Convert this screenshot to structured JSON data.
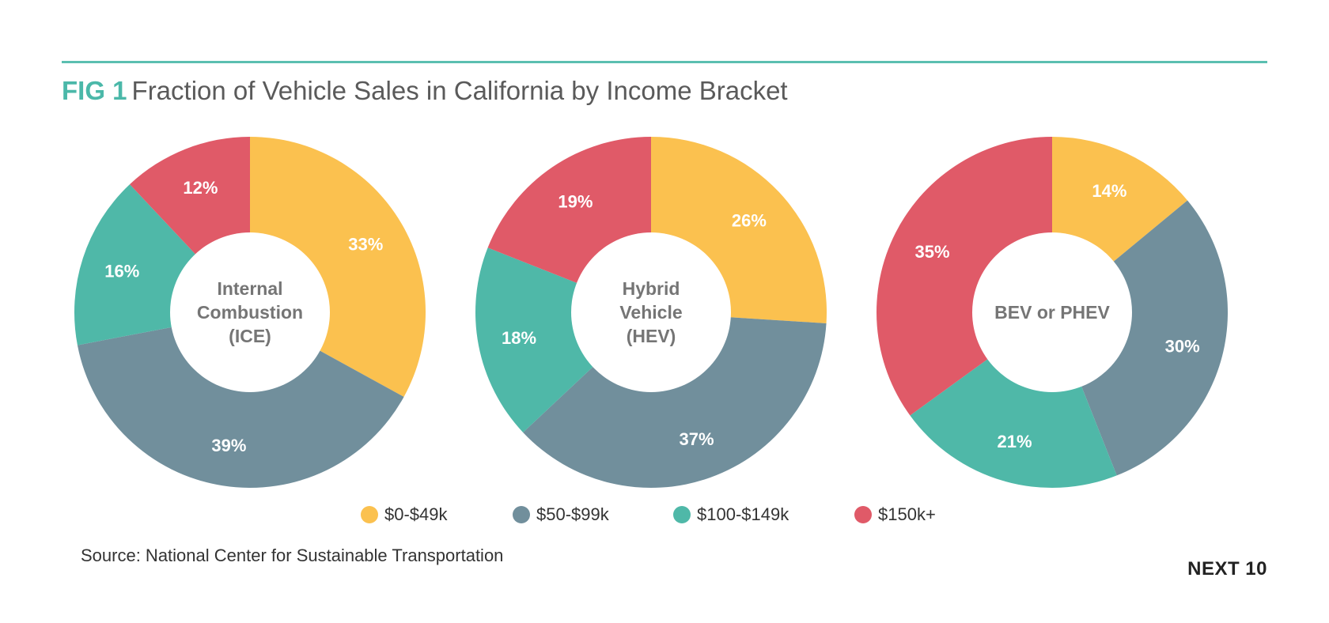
{
  "header": {
    "fig_label": "FIG 1",
    "title": "Fraction of Vehicle Sales in California by Income Bracket"
  },
  "chart_data": [
    {
      "type": "pie",
      "title": "Internal Combustion (ICE)",
      "center_label": [
        "Internal",
        "Combustion",
        "(ICE)"
      ],
      "categories": [
        "$0-$49k",
        "$50-$99k",
        "$100-$149k",
        "$150k+"
      ],
      "values": [
        33,
        39,
        16,
        12
      ],
      "value_labels": [
        "33%",
        "39%",
        "16%",
        "12%"
      ]
    },
    {
      "type": "pie",
      "title": "Hybrid Vehicle (HEV)",
      "center_label": [
        "Hybrid",
        "Vehicle",
        "(HEV)"
      ],
      "categories": [
        "$0-$49k",
        "$50-$99k",
        "$100-$149k",
        "$150k+"
      ],
      "values": [
        26,
        37,
        18,
        19
      ],
      "value_labels": [
        "26%",
        "37%",
        "18%",
        "19%"
      ]
    },
    {
      "type": "pie",
      "title": "BEV or PHEV",
      "center_label": [
        "BEV or PHEV"
      ],
      "categories": [
        "$0-$49k",
        "$50-$99k",
        "$100-$149k",
        "$150k+"
      ],
      "values": [
        14,
        30,
        21,
        35
      ],
      "value_labels": [
        "14%",
        "30%",
        "21%",
        "35%"
      ]
    }
  ],
  "legend": [
    {
      "label": "$0-$49k",
      "color": "#fbc14f"
    },
    {
      "label": "$50-$99k",
      "color": "#718f9c"
    },
    {
      "label": "$100-$149k",
      "color": "#4fb8a8"
    },
    {
      "label": "$150k+",
      "color": "#e05a68"
    }
  ],
  "colors": {
    "accent": "#4bb8a9",
    "center_text": "#757575"
  },
  "footer": {
    "source": "Source: National Center for Sustainable Transportation",
    "brand": "NEXT 10"
  }
}
